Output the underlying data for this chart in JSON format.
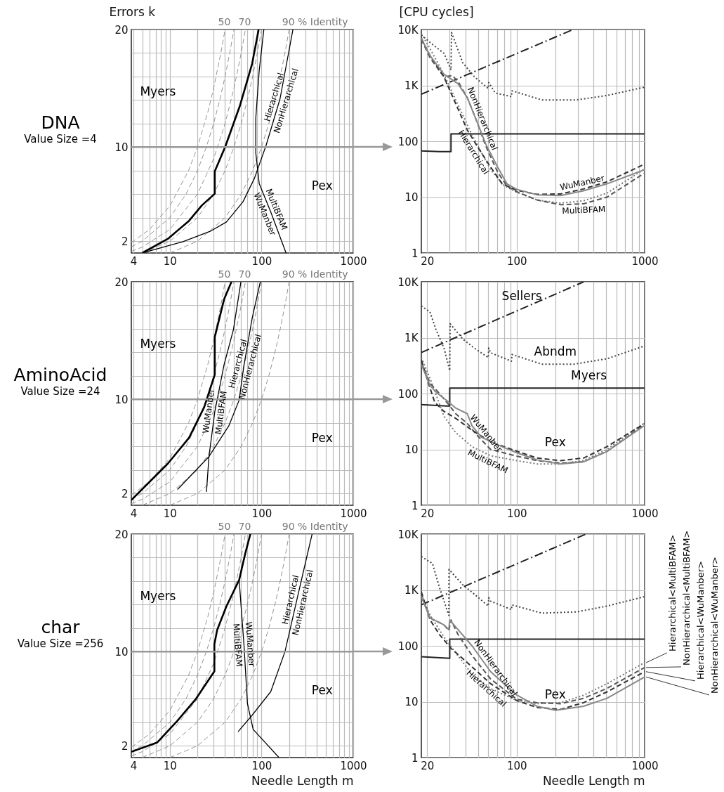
{
  "chart_data": [
    {
      "type": "line",
      "title": "DNA",
      "subtitle": "Value Size =4",
      "ylabel": "Errors k",
      "log": "x",
      "grid": true,
      "xlim": [
        3.8,
        1000
      ],
      "ylim": [
        1,
        20
      ],
      "xticks": [
        4,
        {
          "value": 5,
          "label": null
        },
        {
          "value": 6,
          "label": null
        },
        {
          "value": 7,
          "label": null
        },
        {
          "value": 8,
          "label": null
        },
        {
          "value": 9,
          "label": null
        },
        10,
        {
          "value": 20,
          "label": null
        },
        {
          "value": 30,
          "label": null
        },
        {
          "value": 40,
          "label": null
        },
        {
          "value": 50,
          "label": null
        },
        {
          "value": 60,
          "label": null
        },
        {
          "value": 70,
          "label": null
        },
        {
          "value": 80,
          "label": null
        },
        {
          "value": 90,
          "label": null
        },
        100,
        {
          "value": 200,
          "label": null
        },
        {
          "value": 300,
          "label": null
        },
        {
          "value": 400,
          "label": null
        },
        {
          "value": 500,
          "label": null
        },
        {
          "value": 600,
          "label": null
        },
        {
          "value": 700,
          "label": null
        },
        {
          "value": 800,
          "label": null
        },
        {
          "value": 900,
          "label": null
        },
        1000
      ],
      "yticks": [
        2,
        {
          "value": 4,
          "label": null
        },
        {
          "value": 6,
          "label": null
        },
        {
          "value": 8,
          "label": null
        },
        10,
        {
          "value": 12,
          "label": null
        },
        {
          "value": 14,
          "label": null
        },
        {
          "value": 16,
          "label": null
        },
        {
          "value": 18,
          "label": null
        },
        20
      ],
      "series": [
        {
          "color": "#888888",
          "line_style": "dashed",
          "x": [
            3.8,
            4,
            6,
            10,
            16,
            20,
            26,
            30,
            36,
            40
          ],
          "values": [
            1.9,
            2,
            3,
            5,
            8,
            10,
            13,
            15,
            18,
            20
          ]
        },
        {
          "color": "#888888",
          "line_style": "dashed",
          "x": [
            3.8,
            5,
            10,
            15,
            20,
            25,
            30,
            35,
            40,
            45,
            50
          ],
          "values": [
            1.52,
            2,
            4,
            6,
            8,
            10,
            12,
            14,
            16,
            18,
            20
          ]
        },
        {
          "color": "#888888",
          "line_style": "dashed",
          "x": [
            3.8,
            5,
            10,
            20,
            30,
            40,
            50,
            60,
            66.7
          ],
          "values": [
            1.14,
            1.5,
            3,
            6,
            9,
            12,
            15,
            18,
            20
          ]
        },
        {
          "color": "#888888",
          "line_style": "dashed",
          "x": [
            5,
            10,
            20,
            30,
            40,
            50,
            60,
            70,
            80,
            90,
            100
          ],
          "values": [
            1,
            2,
            4,
            6,
            8,
            10,
            12,
            14,
            16,
            18,
            20
          ]
        },
        {
          "color": "#888888",
          "line_style": "dashed",
          "x": [
            10,
            20,
            40,
            60,
            80,
            100,
            120,
            140,
            160,
            180,
            200
          ],
          "values": [
            1,
            2,
            4,
            6,
            8,
            10,
            12,
            14,
            16,
            18,
            20
          ]
        },
        {
          "color": "#000000",
          "line_style": "solid",
          "x": [
            5,
            9.5,
            16.2,
            22.3,
            30.9,
            30.9,
            40.2,
            58,
            79,
            93
          ],
          "values": [
            1,
            2.2,
            3.74,
            5.04,
            6.04,
            7.94,
            10.04,
            13.5,
            17.1,
            20
          ]
        },
        {
          "color": "#000000",
          "line_style": "solid",
          "x": [
            5,
            13.6,
            27.5,
            41.4,
            62.6,
            83.6,
            112,
            159,
            220
          ],
          "values": [
            1,
            1.94,
            2.84,
            3.64,
            5.34,
            7.34,
            10.14,
            14.1,
            20
          ]
        },
        {
          "color": "#000000",
          "line_style": "solid",
          "x": [
            106,
            94.3,
            86.6,
            86.6,
            94.3,
            126,
            185
          ],
          "values": [
            20,
            16.5,
            12.5,
            9.5,
            6.9,
            4.5,
            1
          ]
        }
      ],
      "ref_lines": [
        {
          "axis": "y",
          "value": 10,
          "color": "#999999"
        }
      ],
      "annotations": [
        {
          "text": "50",
          "x": 40,
          "y": 20
        },
        {
          "text": "70",
          "x": 66.7,
          "y": 20
        },
        {
          "text": "90 % Identity",
          "x": 200,
          "y": 20
        },
        "Myers",
        "Pex",
        {
          "text": "Hierarchical",
          "x": 159,
          "y": 14.1
        },
        {
          "text": "NonHierarchical",
          "x": 159,
          "y": 14.1
        },
        {
          "text": "MultiBFAM",
          "x": 126,
          "y": 4.5
        },
        {
          "text": "WuManber",
          "x": 126,
          "y": 4.5
        }
      ]
    },
    {
      "type": "line",
      "ylabel": "[CPU cycles]",
      "log": "xy",
      "grid": true,
      "xlim": [
        18,
        1000
      ],
      "ylim": [
        1,
        10000
      ],
      "xticks": [
        20,
        {
          "value": 30,
          "label": null
        },
        {
          "value": 40,
          "label": null
        },
        {
          "value": 50,
          "label": null
        },
        {
          "value": 60,
          "label": null
        },
        {
          "value": 70,
          "label": null
        },
        {
          "value": 80,
          "label": null
        },
        {
          "value": 90,
          "label": null
        },
        100,
        {
          "value": 200,
          "label": null
        },
        {
          "value": 300,
          "label": null
        },
        {
          "value": 400,
          "label": null
        },
        {
          "value": 500,
          "label": null
        },
        {
          "value": 600,
          "label": null
        },
        {
          "value": 700,
          "label": null
        },
        {
          "value": 800,
          "label": null
        },
        {
          "value": 900,
          "label": null
        },
        1000
      ],
      "yticks": [
        1,
        10,
        100,
        {
          "value": 1000,
          "label": "1K"
        },
        {
          "value": 10000,
          "label": "10K"
        }
      ],
      "series": [
        {
          "color": "#222222",
          "line_style": "dashdot",
          "x": [
            18,
            276
          ],
          "values": [
            695,
            10000
          ]
        },
        {
          "color": "#444444",
          "line_style": "dotted",
          "x": [
            18,
            21.9,
            27.1,
            30.7,
            31,
            37.9,
            46.7,
            60,
            60.5,
            68,
            91,
            92,
            157,
            295,
            508,
            1000
          ],
          "values": [
            8000,
            5470,
            3730,
            1900,
            8830,
            2540,
            1430,
            880,
            1120,
            730,
            630,
            800,
            550,
            550,
            660,
            930
          ]
        },
        {
          "color": "#222222",
          "line_style": "solid",
          "x": [
            18,
            25,
            30.7,
            30.7,
            1000
          ],
          "values": [
            67,
            65,
            65,
            136,
            136
          ]
        },
        {
          "color": "#777777",
          "line_style": "dotted",
          "x": [
            18,
            21.1,
            27,
            33.4,
            44.8,
            62.6,
            80,
            100,
            144,
            220,
            333,
            508,
            1000
          ],
          "values": [
            8400,
            4500,
            1580,
            550,
            130,
            31,
            16,
            12.3,
            8.9,
            7.8,
            8.6,
            11.8,
            32
          ]
        },
        {
          "color": "#555555",
          "line_style": "dashed",
          "x": [
            18,
            21.1,
            27,
            31.4,
            34.8,
            41.2,
            48.7,
            57.5,
            71,
            84,
            100,
            144,
            220,
            333,
            508,
            1000
          ],
          "values": [
            6640,
            3080,
            1430,
            1500,
            1180,
            600,
            230,
            81,
            28,
            15.8,
            12.5,
            8.9,
            7.3,
            7.6,
            10,
            27
          ]
        },
        {
          "color": "#333333",
          "line_style": "dashed",
          "x": [
            18,
            21.1,
            27,
            30.7,
            41.2,
            50.7,
            62.6,
            77,
            100,
            144,
            220,
            333,
            508,
            1000
          ],
          "values": [
            6950,
            3380,
            1430,
            730,
            158,
            73,
            34.5,
            17.3,
            13.3,
            11.2,
            11.4,
            14,
            18.8,
            39
          ]
        },
        {
          "color": "#888888",
          "line_style": "solid",
          "x": [
            18,
            21.1,
            27,
            30.7,
            34.8,
            41.2,
            48.7,
            57.5,
            71,
            84,
            100,
            144,
            220,
            333,
            508,
            1000
          ],
          "values": [
            6950,
            3380,
            1580,
            1300,
            1070,
            600,
            230,
            88,
            34.5,
            17.3,
            13.8,
            11,
            10.7,
            13,
            17.3,
            31
          ]
        }
      ],
      "annotations": [
        {
          "text": "NonHierarchical",
          "x": 48.7,
          "y": 230
        },
        {
          "text": "Hierarchical",
          "x": 50.7,
          "y": 73
        },
        {
          "text": "WuManber",
          "x": 333,
          "y": 14
        },
        {
          "text": "MultiBFAM",
          "x": 333,
          "y": 7.6
        }
      ]
    },
    {
      "type": "line",
      "title": "AminoAcid",
      "subtitle": "Value Size =24",
      "log": "x",
      "grid": true,
      "xlim": [
        3.8,
        1000
      ],
      "ylim": [
        1,
        20
      ],
      "xticks": [
        4,
        {
          "value": 5,
          "label": null
        },
        {
          "value": 6,
          "label": null
        },
        {
          "value": 7,
          "label": null
        },
        {
          "value": 8,
          "label": null
        },
        {
          "value": 9,
          "label": null
        },
        10,
        {
          "value": 20,
          "label": null
        },
        {
          "value": 30,
          "label": null
        },
        {
          "value": 40,
          "label": null
        },
        {
          "value": 50,
          "label": null
        },
        {
          "value": 60,
          "label": null
        },
        {
          "value": 70,
          "label": null
        },
        {
          "value": 80,
          "label": null
        },
        {
          "value": 90,
          "label": null
        },
        100,
        {
          "value": 200,
          "label": null
        },
        {
          "value": 300,
          "label": null
        },
        {
          "value": 400,
          "label": null
        },
        {
          "value": 500,
          "label": null
        },
        {
          "value": 600,
          "label": null
        },
        {
          "value": 700,
          "label": null
        },
        {
          "value": 800,
          "label": null
        },
        {
          "value": 900,
          "label": null
        },
        1000
      ],
      "yticks": [
        2,
        {
          "value": 4,
          "label": null
        },
        {
          "value": 6,
          "label": null
        },
        {
          "value": 8,
          "label": null
        },
        10,
        {
          "value": 12,
          "label": null
        },
        {
          "value": 14,
          "label": null
        },
        {
          "value": 16,
          "label": null
        },
        {
          "value": 18,
          "label": null
        },
        20
      ],
      "series": [
        {
          "color": "#888888",
          "line_style": "dashed",
          "x": [
            3.8,
            4,
            6,
            10,
            16,
            20,
            26,
            30,
            36,
            40
          ],
          "values": [
            1.9,
            2,
            3,
            5,
            8,
            10,
            13,
            15,
            18,
            20
          ]
        },
        {
          "color": "#888888",
          "line_style": "dashed",
          "x": [
            3.8,
            5,
            10,
            15,
            20,
            25,
            30,
            35,
            40,
            45,
            50
          ],
          "values": [
            1.52,
            2,
            4,
            6,
            8,
            10,
            12,
            14,
            16,
            18,
            20
          ]
        },
        {
          "color": "#888888",
          "line_style": "dashed",
          "x": [
            3.8,
            5,
            10,
            20,
            30,
            40,
            50,
            60,
            66.7
          ],
          "values": [
            1.14,
            1.5,
            3,
            6,
            9,
            12,
            15,
            18,
            20
          ]
        },
        {
          "color": "#888888",
          "line_style": "dashed",
          "x": [
            5,
            10,
            20,
            30,
            40,
            50,
            60,
            70,
            80,
            90,
            100
          ],
          "values": [
            1,
            2,
            4,
            6,
            8,
            10,
            12,
            14,
            16,
            18,
            20
          ]
        },
        {
          "color": "#888888",
          "line_style": "dashed",
          "x": [
            10,
            20,
            40,
            60,
            80,
            100,
            120,
            140,
            160,
            180,
            200
          ],
          "values": [
            1,
            2,
            4,
            6,
            8,
            10,
            12,
            14,
            16,
            18,
            20
          ]
        },
        {
          "color": "#000000",
          "line_style": "solid",
          "x": [
            3.8,
            9.5,
            16.2,
            23.7,
            30.9,
            30.9,
            39,
            47
          ],
          "values": [
            1.44,
            4.54,
            6.74,
            9.34,
            12.1,
            15.3,
            18.5,
            20
          ]
        },
        {
          "color": "#000000",
          "line_style": "solid",
          "x": [
            25.1,
            26.7,
            30.9,
            39,
            49.4,
            59.6
          ],
          "values": [
            2.14,
            5.14,
            8.94,
            12.94,
            15.94,
            20
          ]
        },
        {
          "color": "#000000",
          "line_style": "solid",
          "x": [
            12.1,
            26.7,
            43.9,
            57,
            64.3,
            79,
            97
          ],
          "values": [
            2.34,
            5.14,
            7.74,
            9.94,
            12.9,
            16.9,
            20
          ]
        }
      ],
      "ref_lines": [
        {
          "axis": "y",
          "value": 10,
          "color": "#999999"
        }
      ],
      "annotations": [
        {
          "text": "50",
          "x": 40,
          "y": 20
        },
        {
          "text": "70",
          "x": 66.7,
          "y": 20
        },
        {
          "text": "90 % Identity",
          "x": 200,
          "y": 20
        },
        "Myers",
        "Pex",
        {
          "text": "WuManber",
          "x": 30.9,
          "y": 8.94
        },
        {
          "text": "MultiBFAM",
          "x": 30.9,
          "y": 8.94
        },
        {
          "text": "Hierarchical",
          "x": 64.3,
          "y": 12.9
        },
        {
          "text": "NonHierarchical",
          "x": 64.3,
          "y": 12.9
        }
      ]
    },
    {
      "type": "line",
      "log": "xy",
      "grid": true,
      "xlim": [
        18,
        1000
      ],
      "ylim": [
        1,
        10000
      ],
      "xticks": [
        20,
        {
          "value": 30,
          "label": null
        },
        {
          "value": 40,
          "label": null
        },
        {
          "value": 50,
          "label": null
        },
        {
          "value": 60,
          "label": null
        },
        {
          "value": 70,
          "label": null
        },
        {
          "value": 80,
          "label": null
        },
        {
          "value": 90,
          "label": null
        },
        100,
        {
          "value": 200,
          "label": null
        },
        {
          "value": 300,
          "label": null
        },
        {
          "value": 400,
          "label": null
        },
        {
          "value": 500,
          "label": null
        },
        {
          "value": 600,
          "label": null
        },
        {
          "value": 700,
          "label": null
        },
        {
          "value": 800,
          "label": null
        },
        {
          "value": 900,
          "label": null
        },
        1000
      ],
      "yticks": [
        1,
        10,
        100,
        {
          "value": 1000,
          "label": "1K"
        },
        {
          "value": 10000,
          "label": "10K"
        }
      ],
      "series": [
        {
          "name": "Sellers",
          "color": "#222222",
          "line_style": "dashdot",
          "x": [
            18,
            334
          ],
          "values": [
            543,
            10000
          ]
        },
        {
          "name": "Abndm",
          "color": "#444444",
          "line_style": "dotted",
          "x": [
            18,
            21,
            23.4,
            27.1,
            30,
            30.2,
            37.9,
            46.7,
            60,
            60.5,
            62.6,
            91,
            92,
            157,
            282,
            508,
            1000
          ],
          "values": [
            3690,
            2900,
            1400,
            645,
            257,
            1780,
            950,
            650,
            440,
            650,
            535,
            380,
            500,
            336,
            336,
            420,
            713
          ]
        },
        {
          "name": "Myers",
          "color": "#222222",
          "line_style": "solid",
          "x": [
            18,
            28.2,
            30,
            30,
            1000
          ],
          "values": [
            63.5,
            60,
            60,
            125,
            125
          ]
        },
        {
          "color": "#777777",
          "line_style": "dotted",
          "x": [
            18,
            21.1,
            27,
            33.4,
            44.8,
            62.6,
            100,
            144,
            220,
            333,
            508,
            1000
          ],
          "values": [
            440,
            184,
            39.5,
            20,
            11.2,
            7.7,
            6.3,
            5.5,
            5.5,
            6.3,
            10,
            30
          ]
        },
        {
          "color": "#555555",
          "line_style": "dashed",
          "x": [
            18,
            21.1,
            23.8,
            29.5,
            33.4,
            41.2,
            48.7,
            62.6,
            100,
            144,
            220,
            333,
            508,
            1000
          ],
          "values": [
            360,
            152,
            113,
            63,
            43.5,
            29,
            18.2,
            10,
            7.6,
            6.3,
            5.7,
            6,
            9.2,
            28
          ]
        },
        {
          "color": "#333333",
          "line_style": "dashed",
          "x": [
            18,
            20.2,
            22.9,
            27,
            33.4,
            44.8,
            62.6,
            100,
            144,
            220,
            333,
            508,
            1000
          ],
          "values": [
            400,
            167,
            70,
            48,
            36,
            22,
            13.7,
            9.3,
            7,
            6.3,
            7,
            11.2,
            29
          ]
        },
        {
          "color": "#888888",
          "line_style": "solid",
          "x": [
            18,
            21.1,
            23.8,
            29.5,
            33.4,
            41.2,
            44.8,
            53,
            77,
            100,
            144,
            220,
            333,
            508,
            1000
          ],
          "values": [
            330,
            138,
            103,
            70,
            55,
            43.5,
            26.5,
            16.5,
            11.2,
            8.7,
            6.5,
            5.5,
            6,
            9.2,
            27
          ]
        }
      ],
      "annotations": [
        "Pex",
        {
          "text": "WuManber",
          "x": 53,
          "y": 16.5
        },
        {
          "text": "MultiBFAM",
          "x": 62.6,
          "y": 7.7
        }
      ]
    },
    {
      "type": "line",
      "title": "char",
      "subtitle": "Value Size =256",
      "xlabel": "Needle Length m",
      "log": "x",
      "grid": true,
      "xlim": [
        3.8,
        1000
      ],
      "ylim": [
        1,
        20
      ],
      "xticks": [
        4,
        {
          "value": 5,
          "label": null
        },
        {
          "value": 6,
          "label": null
        },
        {
          "value": 7,
          "label": null
        },
        {
          "value": 8,
          "label": null
        },
        {
          "value": 9,
          "label": null
        },
        10,
        {
          "value": 20,
          "label": null
        },
        {
          "value": 30,
          "label": null
        },
        {
          "value": 40,
          "label": null
        },
        {
          "value": 50,
          "label": null
        },
        {
          "value": 60,
          "label": null
        },
        {
          "value": 70,
          "label": null
        },
        {
          "value": 80,
          "label": null
        },
        {
          "value": 90,
          "label": null
        },
        100,
        {
          "value": 200,
          "label": null
        },
        {
          "value": 300,
          "label": null
        },
        {
          "value": 400,
          "label": null
        },
        {
          "value": 500,
          "label": null
        },
        {
          "value": 600,
          "label": null
        },
        {
          "value": 700,
          "label": null
        },
        {
          "value": 800,
          "label": null
        },
        {
          "value": 900,
          "label": null
        },
        1000
      ],
      "yticks": [
        2,
        {
          "value": 4,
          "label": null
        },
        {
          "value": 6,
          "label": null
        },
        {
          "value": 8,
          "label": null
        },
        10,
        {
          "value": 12,
          "label": null
        },
        {
          "value": 14,
          "label": null
        },
        {
          "value": 16,
          "label": null
        },
        {
          "value": 18,
          "label": null
        },
        20
      ],
      "series": [
        {
          "color": "#888888",
          "line_style": "dashed",
          "x": [
            3.8,
            4,
            6,
            10,
            16,
            20,
            26,
            30,
            36,
            40
          ],
          "values": [
            1.9,
            2,
            3,
            5,
            8,
            10,
            13,
            15,
            18,
            20
          ]
        },
        {
          "color": "#888888",
          "line_style": "dashed",
          "x": [
            3.8,
            5,
            10,
            15,
            20,
            25,
            30,
            35,
            40,
            45,
            50
          ],
          "values": [
            1.52,
            2,
            4,
            6,
            8,
            10,
            12,
            14,
            16,
            18,
            20
          ]
        },
        {
          "color": "#888888",
          "line_style": "dashed",
          "x": [
            3.8,
            5,
            10,
            20,
            30,
            40,
            50,
            60,
            66.7
          ],
          "values": [
            1.14,
            1.5,
            3,
            6,
            9,
            12,
            15,
            18,
            20
          ]
        },
        {
          "color": "#888888",
          "line_style": "dashed",
          "x": [
            5,
            10,
            20,
            30,
            40,
            50,
            60,
            70,
            80,
            90,
            100
          ],
          "values": [
            1,
            2,
            4,
            6,
            8,
            10,
            12,
            14,
            16,
            18,
            20
          ]
        },
        {
          "color": "#888888",
          "line_style": "dashed",
          "x": [
            10,
            20,
            40,
            60,
            80,
            100,
            120,
            140,
            160,
            180,
            200
          ],
          "values": [
            1,
            2,
            4,
            6,
            8,
            10,
            12,
            14,
            16,
            18,
            20
          ]
        },
        {
          "color": "#000000",
          "line_style": "solid",
          "x": [
            3.8,
            7.3,
            12,
            19.3,
            30.6,
            30.6,
            32.8,
            41.4,
            57,
            66.2,
            75.5
          ],
          "values": [
            1.49,
            2.29,
            4.1,
            6,
            8.33,
            10.64,
            11.85,
            13.86,
            16.1,
            18.3,
            20
          ]
        },
        {
          "color": "#000000",
          "line_style": "solid",
          "x": [
            57,
            64.3,
            70.2,
            81,
            155
          ],
          "values": [
            16.1,
            10.6,
            5.6,
            3.4,
            1
          ]
        },
        {
          "color": "#000000",
          "line_style": "solid",
          "x": [
            55.5,
            79,
            126,
            180,
            241,
            304,
            356
          ],
          "values": [
            3.2,
            4.6,
            6.6,
            10,
            14.3,
            17.7,
            20
          ]
        }
      ],
      "ref_lines": [
        {
          "axis": "y",
          "value": 10,
          "color": "#999999"
        }
      ],
      "annotations": [
        {
          "text": "50",
          "x": 40,
          "y": 20
        },
        {
          "text": "70",
          "x": 66.7,
          "y": 20
        },
        {
          "text": "90 % Identity",
          "x": 200,
          "y": 20
        },
        "Myers",
        "Pex",
        {
          "text": "WuManber",
          "x": 64.3,
          "y": 10.6
        },
        {
          "text": "MultiBFAM",
          "x": 64.3,
          "y": 10.6
        },
        {
          "text": "Hierarchical",
          "x": 241,
          "y": 14.3
        },
        {
          "text": "NonHierarchical",
          "x": 241,
          "y": 14.3
        }
      ]
    },
    {
      "type": "line",
      "xlabel": "Needle Length m",
      "log": "xy",
      "grid": true,
      "legend": "right",
      "xlim": [
        18,
        1000
      ],
      "ylim": [
        1,
        10000
      ],
      "xticks": [
        20,
        {
          "value": 30,
          "label": null
        },
        {
          "value": 40,
          "label": null
        },
        {
          "value": 50,
          "label": null
        },
        {
          "value": 60,
          "label": null
        },
        {
          "value": 70,
          "label": null
        },
        {
          "value": 80,
          "label": null
        },
        {
          "value": 90,
          "label": null
        },
        100,
        {
          "value": 200,
          "label": null
        },
        {
          "value": 300,
          "label": null
        },
        {
          "value": 400,
          "label": null
        },
        {
          "value": 500,
          "label": null
        },
        {
          "value": 600,
          "label": null
        },
        {
          "value": 700,
          "label": null
        },
        {
          "value": 800,
          "label": null
        },
        {
          "value": 900,
          "label": null
        },
        1000
      ],
      "yticks": [
        1,
        10,
        100,
        {
          "value": 1000,
          "label": "1K"
        },
        {
          "value": 10000,
          "label": "10K"
        }
      ],
      "series": [
        {
          "color": "#222222",
          "line_style": "dashdot",
          "x": [
            18,
            348
          ],
          "values": [
            542,
            10000
          ]
        },
        {
          "color": "#444444",
          "line_style": "dotted",
          "x": [
            18,
            22,
            24.9,
            29.5,
            29.6,
            37.9,
            46.7,
            60,
            60.5,
            62.6,
            91,
            92,
            157,
            295,
            508,
            1000
          ],
          "values": [
            3970,
            2970,
            1120,
            350,
            2330,
            1240,
            840,
            515,
            727,
            630,
            445,
            540,
            385,
            405,
            515,
            761
          ]
        },
        {
          "color": "#222222",
          "line_style": "solid",
          "x": [
            18,
            30,
            30,
            1000
          ],
          "values": [
            64,
            60,
            132,
            132
          ]
        },
        {
          "name": "Hierarchical<MultiBFAM>",
          "color": "#777777",
          "line_style": "dotted",
          "x": [
            18,
            21.1,
            27,
            33.4,
            44.8,
            62.6,
            100,
            144,
            220,
            333,
            508,
            1000
          ],
          "values": [
            840,
            350,
            145,
            75,
            31,
            17.2,
            10.5,
            9.2,
            9.6,
            13,
            21,
            50
          ]
        },
        {
          "name": "NonHierarchical<MultiBFAM>",
          "color": "#555555",
          "line_style": "dashed",
          "x": [
            18,
            21.1,
            27,
            29.5,
            30.7,
            34.8,
            44.8,
            62.6,
            100,
            144,
            220,
            333,
            508,
            1000
          ],
          "values": [
            760,
            315,
            238,
            187,
            290,
            160,
            67,
            25.5,
            11.1,
            9.6,
            9.2,
            11.5,
            17.3,
            41
          ]
        },
        {
          "name": "Hierarchical<WuManber>",
          "color": "#333333",
          "line_style": "dashed",
          "x": [
            18,
            21.1,
            24.9,
            30.7,
            41.2,
            62.6,
            100,
            144,
            220,
            333,
            508,
            1000
          ],
          "values": [
            925,
            290,
            160,
            90,
            50,
            21,
            10.5,
            7.9,
            7.3,
            9.6,
            15,
            34.5
          ]
        },
        {
          "name": "NonHierarchical<WuManber>",
          "color": "#888888",
          "line_style": "solid",
          "x": [
            18,
            21.1,
            27,
            29.5,
            30,
            34.8,
            44.8,
            62.6,
            100,
            144,
            202,
            333,
            508,
            1000
          ],
          "values": [
            760,
            315,
            238,
            195,
            290,
            195,
            100,
            34.5,
            13.2,
            8.3,
            7,
            8.3,
            11.5,
            27.7
          ]
        }
      ],
      "annotations": [
        "Pex",
        {
          "text": "NonHierarchical",
          "x": 62.6,
          "y": 34.5
        },
        {
          "text": "Hierarchical",
          "x": 62.6,
          "y": 21
        }
      ]
    }
  ]
}
